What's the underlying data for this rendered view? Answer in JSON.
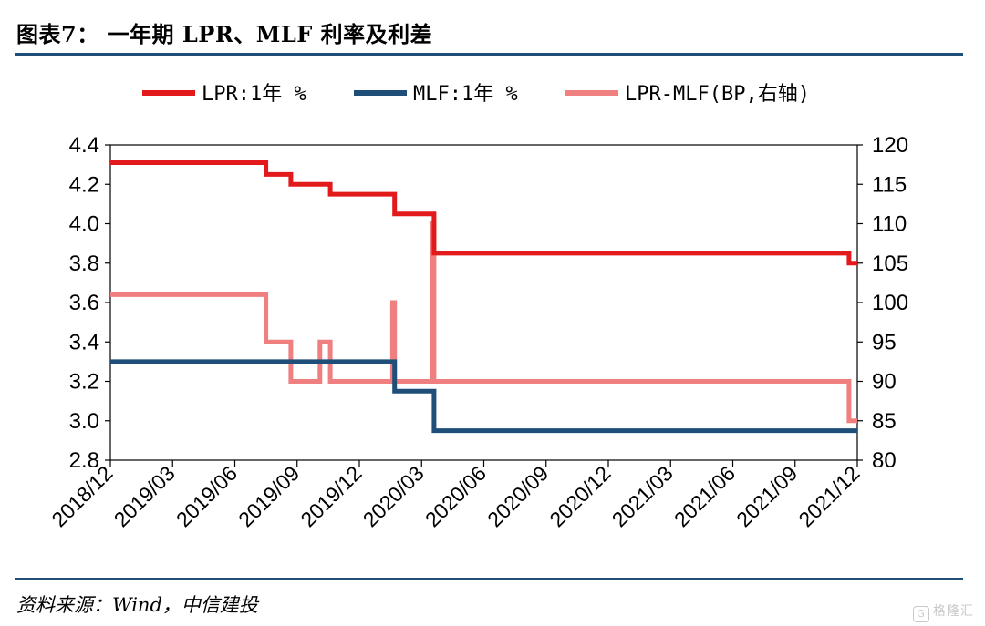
{
  "header": {
    "title": "图表7： 一年期 LPR、MLF 利率及利差"
  },
  "footer": {
    "source": "资料来源：Wind，中信建投",
    "watermark": "格隆汇"
  },
  "colors": {
    "rule": "#1f4e79",
    "lpr": "#e31a1c",
    "mlf": "#1f4e79",
    "spread": "#f08080"
  },
  "chart_data": {
    "type": "line",
    "title": "",
    "x_categories": [
      "2018/12",
      "2019/03",
      "2019/06",
      "2019/09",
      "2019/12",
      "2020/03",
      "2020/06",
      "2020/09",
      "2020/12",
      "2021/03",
      "2021/06",
      "2021/09",
      "2021/12"
    ],
    "x_range": [
      0,
      36
    ],
    "y_left": {
      "ticks": [
        "4.4",
        "4.2",
        "4.0",
        "3.8",
        "3.6",
        "3.4",
        "3.2",
        "3.0",
        "2.8"
      ],
      "lim": [
        2.8,
        4.4
      ]
    },
    "y_right": {
      "ticks": [
        "120",
        "115",
        "110",
        "105",
        "100",
        "95",
        "90",
        "85",
        "80"
      ],
      "lim": [
        80,
        120
      ]
    },
    "legend": {
      "placement": "top"
    },
    "series": [
      {
        "name": "LPR:1年 %",
        "axis": "left",
        "color": "#e31a1c",
        "points": [
          [
            0,
            4.31
          ],
          [
            7.5,
            4.31
          ],
          [
            7.5,
            4.25
          ],
          [
            8.7,
            4.25
          ],
          [
            8.7,
            4.2
          ],
          [
            10.6,
            4.2
          ],
          [
            10.6,
            4.15
          ],
          [
            13.7,
            4.15
          ],
          [
            13.7,
            4.05
          ],
          [
            15.6,
            4.05
          ],
          [
            15.6,
            3.85
          ],
          [
            35.6,
            3.85
          ],
          [
            35.6,
            3.8
          ],
          [
            36,
            3.8
          ]
        ]
      },
      {
        "name": "MLF:1年 %",
        "axis": "left",
        "color": "#1f4e79",
        "points": [
          [
            0,
            3.3
          ],
          [
            13.7,
            3.3
          ],
          [
            13.7,
            3.25
          ],
          [
            13.7,
            3.25
          ],
          [
            13.7,
            3.15
          ],
          [
            15.6,
            3.15
          ],
          [
            15.6,
            2.95
          ],
          [
            36,
            2.95
          ]
        ]
      },
      {
        "name": "LPR-MLF(BP,右轴)",
        "axis": "right",
        "color": "#f08080",
        "points": [
          [
            0,
            101
          ],
          [
            7.5,
            101
          ],
          [
            7.5,
            95
          ],
          [
            8.7,
            95
          ],
          [
            8.7,
            90
          ],
          [
            10.1,
            90
          ],
          [
            10.1,
            95
          ],
          [
            10.6,
            95
          ],
          [
            10.6,
            90
          ],
          [
            13.6,
            90
          ],
          [
            13.6,
            100
          ],
          [
            13.7,
            100
          ],
          [
            13.7,
            90
          ],
          [
            15.5,
            90
          ],
          [
            15.5,
            110
          ],
          [
            15.6,
            110
          ],
          [
            15.6,
            90
          ],
          [
            35.6,
            90
          ],
          [
            35.6,
            85
          ],
          [
            36,
            85
          ]
        ]
      }
    ]
  }
}
